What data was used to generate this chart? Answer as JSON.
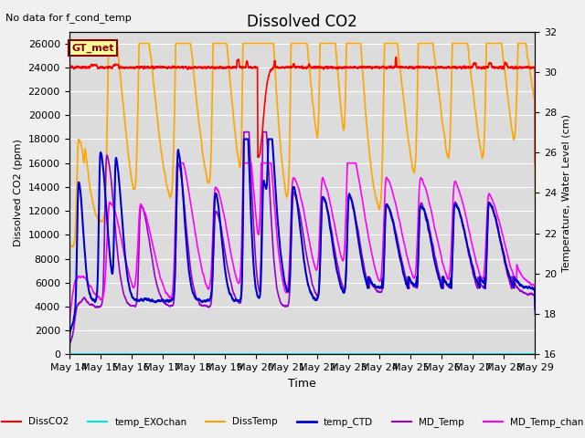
{
  "title": "Dissolved CO2",
  "subtitle": "No data for f_cond_temp",
  "annotation": "GT_met",
  "xlabel": "Time",
  "ylabel_left": "Dissolved CO2 (ppm)",
  "ylabel_right": "Temperature, Water Level (cm)",
  "ylim_left": [
    0,
    27000
  ],
  "ylim_right": [
    16,
    32
  ],
  "yticks_left": [
    0,
    2000,
    4000,
    6000,
    8000,
    10000,
    12000,
    14000,
    16000,
    18000,
    20000,
    22000,
    24000,
    26000
  ],
  "yticks_right": [
    16,
    18,
    20,
    22,
    24,
    26,
    28,
    30,
    32
  ],
  "xtick_labels": [
    "May 14",
    "May 15",
    "May 16",
    "May 17",
    "May 18",
    "May 19",
    "May 20",
    "May 21",
    "May 22",
    "May 23",
    "May 24",
    "May 25",
    "May 26",
    "May 27",
    "May 28",
    "May 29"
  ],
  "background_color": "#dcdcdc",
  "legend_colors": {
    "DissCO2": "#ff0000",
    "temp_EXOchan": "#00e5e5",
    "DissTemp": "#ffa500",
    "temp_CTD": "#0000cc",
    "MD_Temp": "#9900cc",
    "MD_Temp_chan": "#ff00ff"
  }
}
